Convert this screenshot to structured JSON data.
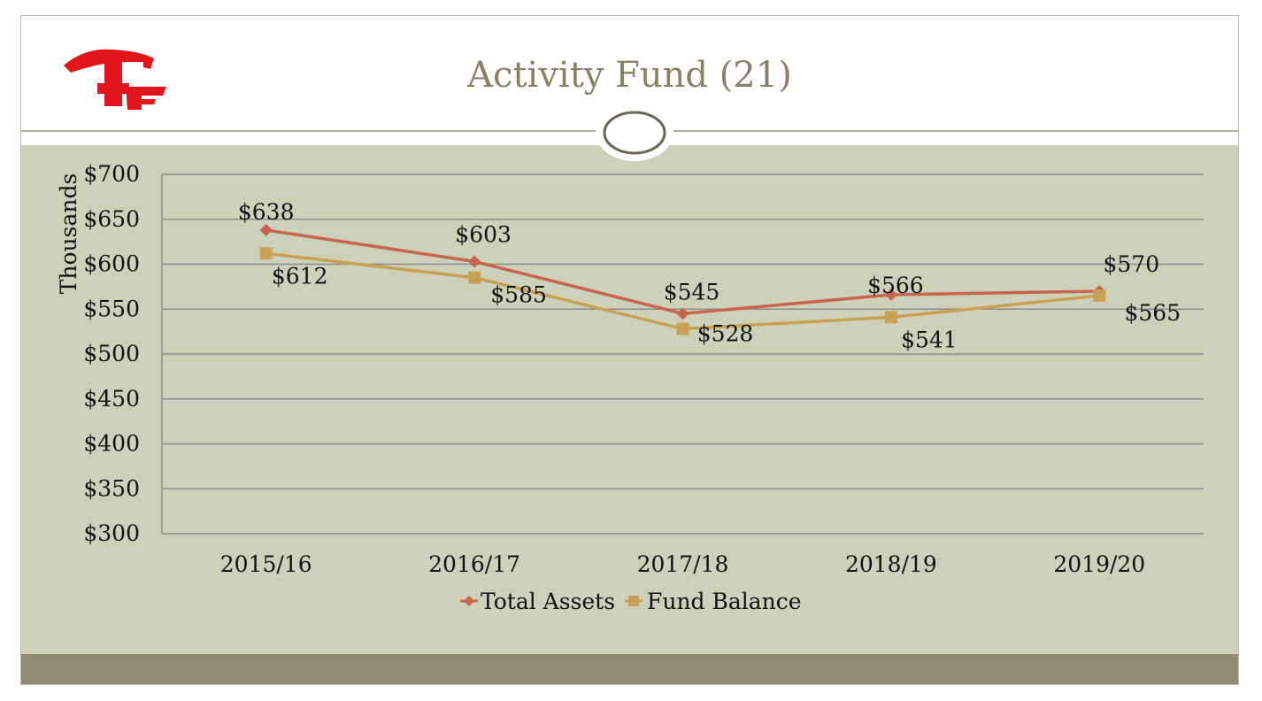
{
  "slide": {
    "title": "Activity Fund (21)",
    "logo_icon": "gf-letter-logo",
    "colors": {
      "logo": "#e3141b",
      "body": "#cdd1ba",
      "footer": "#938b71",
      "title": "#8a8066"
    }
  },
  "chart_data": {
    "type": "line",
    "title": "",
    "xlabel": "",
    "ylabel": "Thousands",
    "categories": [
      "2015/16",
      "2016/17",
      "2017/18",
      "2018/19",
      "2019/20"
    ],
    "ylim": [
      300,
      700
    ],
    "yticks": [
      700,
      650,
      600,
      550,
      500,
      450,
      400,
      350,
      300
    ],
    "ytick_labels": [
      "$700",
      "$650",
      "$600",
      "$550",
      "$500",
      "$450",
      "$400",
      "$350",
      "$300"
    ],
    "grid": true,
    "legend_position": "bottom",
    "series": [
      {
        "name": "Total Assets",
        "color": "#c8654f",
        "marker": "diamond",
        "values": [
          638,
          603,
          545,
          566,
          570
        ],
        "labels": [
          "$638",
          "$603",
          "$545",
          "$566",
          "$570"
        ]
      },
      {
        "name": "Fund Balance",
        "color": "#c9a055",
        "marker": "square",
        "values": [
          612,
          585,
          528,
          541,
          565
        ],
        "labels": [
          "$612",
          "$585",
          "$528",
          "$541",
          "$565"
        ]
      }
    ]
  }
}
